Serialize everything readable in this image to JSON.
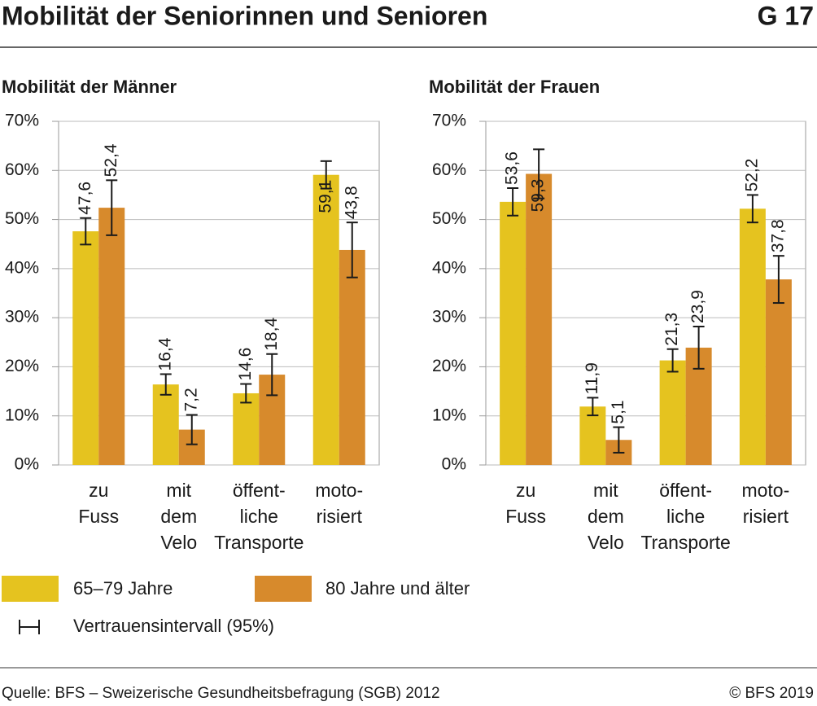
{
  "header": {
    "title": "Mobilität der Seniorinnen und Senioren",
    "code": "G 17"
  },
  "chart_data": [
    {
      "type": "bar",
      "title": "Mobilität der Männer",
      "categories": [
        "zu\nFuss",
        "mit\ndem\nVelo",
        "öffent-\nliche\nTransporte",
        "moto-\nrisiert"
      ],
      "series": [
        {
          "name": "65–79 Jahre",
          "color": "#e5c31f",
          "values": [
            47.6,
            16.4,
            14.6,
            59.1
          ],
          "value_labels": [
            "47,6",
            "16,4",
            "14,6",
            "59,1"
          ],
          "errors": [
            2.7,
            2.1,
            1.9,
            2.8
          ]
        },
        {
          "name": "80 Jahre und älter",
          "color": "#d78a2c",
          "values": [
            52.4,
            7.2,
            18.4,
            43.8
          ],
          "value_labels": [
            "52,4",
            "7,2",
            "18,4",
            "43,8"
          ],
          "errors": [
            5.6,
            3.0,
            4.2,
            5.6
          ]
        }
      ],
      "ylim": [
        0,
        70
      ],
      "yticks": [
        {
          "value": 0,
          "label": "0%"
        },
        {
          "value": 10,
          "label": "10%"
        },
        {
          "value": 20,
          "label": "20%"
        },
        {
          "value": 30,
          "label": "30%"
        },
        {
          "value": 40,
          "label": "40%"
        },
        {
          "value": 50,
          "label": "50%"
        },
        {
          "value": 60,
          "label": "60%"
        },
        {
          "value": 70,
          "label": "70%"
        }
      ],
      "grid": true
    },
    {
      "type": "bar",
      "title": "Mobilität der Frauen",
      "categories": [
        "zu\nFuss",
        "mit\ndem\nVelo",
        "öffent-\nliche\nTransporte",
        "moto-\nrisiert"
      ],
      "series": [
        {
          "color": "#e5c31f",
          "values": [
            53.6,
            11.9,
            21.3,
            52.2
          ],
          "value_labels": [
            "53,6",
            "11,9",
            "21,3",
            "52,2"
          ],
          "errors": [
            2.8,
            1.8,
            2.3,
            2.8
          ]
        },
        {
          "color": "#d78a2c",
          "values": [
            59.3,
            5.1,
            23.9,
            37.8
          ],
          "value_labels": [
            "59,3",
            "5,1",
            "23,9",
            "37,8"
          ],
          "errors": [
            5.0,
            2.6,
            4.3,
            4.8
          ]
        }
      ],
      "ylim": [
        0,
        70
      ],
      "yticks": [
        {
          "value": 0,
          "label": "0%"
        },
        {
          "value": 10,
          "label": "10%"
        },
        {
          "value": 20,
          "label": "20%"
        },
        {
          "value": 30,
          "label": "30%"
        },
        {
          "value": 40,
          "label": "40%"
        },
        {
          "value": 50,
          "label": "50%"
        },
        {
          "value": 60,
          "label": "60%"
        },
        {
          "value": 70,
          "label": "70%"
        }
      ],
      "grid": true
    }
  ],
  "legend": {
    "ci": "Vertrauensintervall (95%)"
  },
  "footer": {
    "source": "Quelle: BFS – Sweizerische Gesundheitsbefragung (SGB) 2012",
    "copyright": "© BFS 2019"
  }
}
